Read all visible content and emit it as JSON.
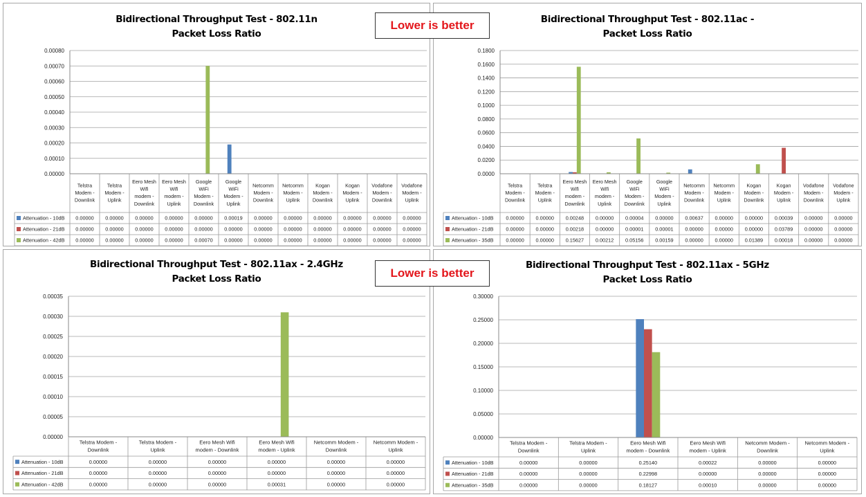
{
  "badge": "Lower is better",
  "colors": {
    "s1": "#4f81bd",
    "s2": "#c0504d",
    "s3": "#9bbb59"
  },
  "chart_data": [
    {
      "type": "bar",
      "title": [
        "Bidirectional Throughput Test - 802.11n",
        "Packet Loss Ratio"
      ],
      "ylim": [
        0,
        0.0008
      ],
      "yticks": [
        "0.00000",
        "0.00010",
        "0.00020",
        "0.00030",
        "0.00040",
        "0.00050",
        "0.00060",
        "0.00070",
        "0.00080"
      ],
      "categories": [
        [
          "Telstra",
          "Modem -",
          "Downlink"
        ],
        [
          "Telstra",
          "Modem -",
          "Uplink"
        ],
        [
          "Eero Mesh",
          "Wifi",
          "modem -",
          "Downlink"
        ],
        [
          "Eero Mesh",
          "Wifi",
          "modem -",
          "Uplink"
        ],
        [
          "Google",
          "WiFi",
          "Modem -",
          "Downlink"
        ],
        [
          "Google",
          "WiFi",
          "Modem -",
          "Uplink"
        ],
        [
          "Netcomm",
          "Modem -",
          "Downlink"
        ],
        [
          "Netcomm",
          "Modem -",
          "Uplink"
        ],
        [
          "Kogan",
          "Modem -",
          "Downlink"
        ],
        [
          "Kogan",
          "Modem -",
          "Uplink"
        ],
        [
          "Vodafone",
          "Modem -",
          "Downlink"
        ],
        [
          "Vodafone",
          "Modem -",
          "Uplink"
        ]
      ],
      "series": [
        {
          "name": "Attenuation - 10dB",
          "values": [
            0,
            0,
            0,
            0,
            0,
            0.00019,
            0,
            0,
            0,
            0,
            0,
            0
          ],
          "labels": [
            "0.00000",
            "0.00000",
            "0.00000",
            "0.00000",
            "0.00000",
            "0.00019",
            "0.00000",
            "0.00000",
            "0.00000",
            "0.00000",
            "0.00000",
            "0.00000"
          ]
        },
        {
          "name": "Attenuation - 21dB",
          "values": [
            0,
            0,
            0,
            0,
            0,
            0,
            0,
            0,
            0,
            0,
            0,
            0
          ],
          "labels": [
            "0.00000",
            "0.00000",
            "0.00000",
            "0.00000",
            "0.00000",
            "0.00000",
            "0.00000",
            "0.00000",
            "0.00000",
            "0.00000",
            "0.00000",
            "0.00000"
          ]
        },
        {
          "name": "Attenuation - 42dB",
          "values": [
            0,
            0,
            0,
            0,
            0.0007,
            0,
            0,
            0,
            0,
            0,
            0,
            0
          ],
          "labels": [
            "0.00000",
            "0.00000",
            "0.00000",
            "0.00000",
            "0.00070",
            "0.00000",
            "0.00000",
            "0.00000",
            "0.00000",
            "0.00000",
            "0.00000",
            "0.00000"
          ]
        }
      ],
      "legend": "table-left",
      "grid": true
    },
    {
      "type": "bar",
      "title": [
        "Bidirectional Throughput Test - 802.11ac -",
        "Packet Loss Ratio"
      ],
      "ylim": [
        0,
        0.18
      ],
      "yticks": [
        "0.0000",
        "0.0200",
        "0.0400",
        "0.0600",
        "0.0800",
        "0.1000",
        "0.1200",
        "0.1400",
        "0.1600",
        "0.1800"
      ],
      "categories": [
        [
          "Telstra",
          "Modem -",
          "Downlink"
        ],
        [
          "Telstra",
          "Modem -",
          "Uplink"
        ],
        [
          "Eero Mesh",
          "Wifi",
          "modem -",
          "Downlink"
        ],
        [
          "Eero Mesh",
          "Wifi",
          "modem -",
          "Uplink"
        ],
        [
          "Google",
          "WiFi",
          "Modem -",
          "Downlink"
        ],
        [
          "Google",
          "WiFi",
          "Modem -",
          "Uplink"
        ],
        [
          "Netcomm",
          "Modem -",
          "Downlink"
        ],
        [
          "Netcomm",
          "Modem -",
          "Uplink"
        ],
        [
          "Kogan",
          "Modem -",
          "Downlink"
        ],
        [
          "Kogan",
          "Modem -",
          "Uplink"
        ],
        [
          "Vodafone",
          "Modem -",
          "Downlink"
        ],
        [
          "Vodafone",
          "Modem -",
          "Uplink"
        ]
      ],
      "series": [
        {
          "name": "Attenuation - 10dB",
          "values": [
            0,
            0,
            0.00248,
            0,
            4e-05,
            0,
            0.00637,
            0,
            0,
            0.00039,
            0,
            0
          ],
          "labels": [
            "0.00000",
            "0.00000",
            "0.00248",
            "0.00000",
            "0.00004",
            "0.00000",
            "0.00637",
            "0.00000",
            "0.00000",
            "0.00039",
            "0.00000",
            "0.00000"
          ]
        },
        {
          "name": "Attenuation - 21dB",
          "values": [
            0,
            0,
            0.00218,
            0,
            1e-05,
            1e-05,
            0,
            0,
            0,
            0.03789,
            0,
            0
          ],
          "labels": [
            "0.00000",
            "0.00000",
            "0.00218",
            "0.00000",
            "0.00001",
            "0.00001",
            "0.00000",
            "0.00000",
            "0.00000",
            "0.03789",
            "0.00000",
            "0.00000"
          ]
        },
        {
          "name": "Attenuation - 35dB",
          "values": [
            0,
            0,
            0.15627,
            0.00212,
            0.05156,
            0.00159,
            0,
            0,
            0.01389,
            0.00018,
            0,
            0
          ],
          "labels": [
            "0.00000",
            "0.00000",
            "0.15627",
            "0.00212",
            "0.05156",
            "0.00159",
            "0.00000",
            "0.00000",
            "0.01389",
            "0.00018",
            "0.00000",
            "0.00000"
          ]
        }
      ],
      "legend": "table-left",
      "grid": true
    },
    {
      "type": "bar",
      "title": [
        "Bidirectional Throughput Test - 802.11ax - 2.4GHz",
        "Packet Loss Ratio"
      ],
      "ylim": [
        0,
        0.00035
      ],
      "yticks": [
        "0.00000",
        "0.00005",
        "0.00010",
        "0.00015",
        "0.00020",
        "0.00025",
        "0.00030",
        "0.00035"
      ],
      "categories": [
        [
          "Telstra Modem -",
          "Downlink"
        ],
        [
          "Telstra Modem -",
          "Uplink"
        ],
        [
          "Eero Mesh Wifi",
          "modem - Downlink"
        ],
        [
          "Eero Mesh Wifi",
          "modem - Uplink"
        ],
        [
          "Netcomm Modem -",
          "Downlink"
        ],
        [
          "Netcomm Modem -",
          "Uplink"
        ]
      ],
      "series": [
        {
          "name": "Attenuation - 10dB",
          "values": [
            0,
            0,
            0,
            0,
            0,
            0
          ],
          "labels": [
            "0.00000",
            "0.00000",
            "0.00000",
            "0.00000",
            "0.00000",
            "0.00000"
          ]
        },
        {
          "name": "Attenuation - 21dB",
          "values": [
            0,
            0,
            0,
            0,
            0,
            0
          ],
          "labels": [
            "0.00000",
            "0.00000",
            "0.00000",
            "0.00000",
            "0.00000",
            "0.00000"
          ]
        },
        {
          "name": "Attenuation - 42dB",
          "values": [
            0,
            0,
            0,
            0.00031,
            0,
            0
          ],
          "labels": [
            "0.00000",
            "0.00000",
            "0.00000",
            "0.00031",
            "0.00000",
            "0.00000"
          ]
        }
      ],
      "legend": "table-left",
      "grid": true
    },
    {
      "type": "bar",
      "title": [
        "Bidirectional Throughput Test - 802.11ax - 5GHz",
        "Packet Loss Ratio"
      ],
      "ylim": [
        0,
        0.3
      ],
      "yticks": [
        "0.00000",
        "0.05000",
        "0.10000",
        "0.15000",
        "0.20000",
        "0.25000",
        "0.30000"
      ],
      "categories": [
        [
          "Telstra Modem -",
          "Downlink"
        ],
        [
          "Telstra Modem -",
          "Uplink"
        ],
        [
          "Eero Mesh Wifi",
          "modem - Downlink"
        ],
        [
          "Eero Mesh Wifi",
          "modem - Uplink"
        ],
        [
          "Netcomm Modem -",
          "Downlink"
        ],
        [
          "Netcomm Modem -",
          "Uplink"
        ]
      ],
      "series": [
        {
          "name": "Attenuation - 10dB",
          "values": [
            0,
            0,
            0.2514,
            0.00022,
            0,
            0
          ],
          "labels": [
            "0.00000",
            "0.00000",
            "0.25140",
            "0.00022",
            "0.00000",
            "0.00000"
          ]
        },
        {
          "name": "Attenuation - 21dB",
          "values": [
            0,
            0,
            0.22998,
            0,
            0,
            0
          ],
          "labels": [
            "0.00000",
            "0.00000",
            "0.22998",
            "0.00000",
            "0.00000",
            "0.00000"
          ]
        },
        {
          "name": "Attenuation - 35dB",
          "values": [
            0,
            0,
            0.18127,
            0.0001,
            0,
            0
          ],
          "labels": [
            "0.00000",
            "0.00000",
            "0.18127",
            "0.00010",
            "0.00000",
            "0.00000"
          ]
        }
      ],
      "legend": "table-left",
      "grid": true
    }
  ]
}
